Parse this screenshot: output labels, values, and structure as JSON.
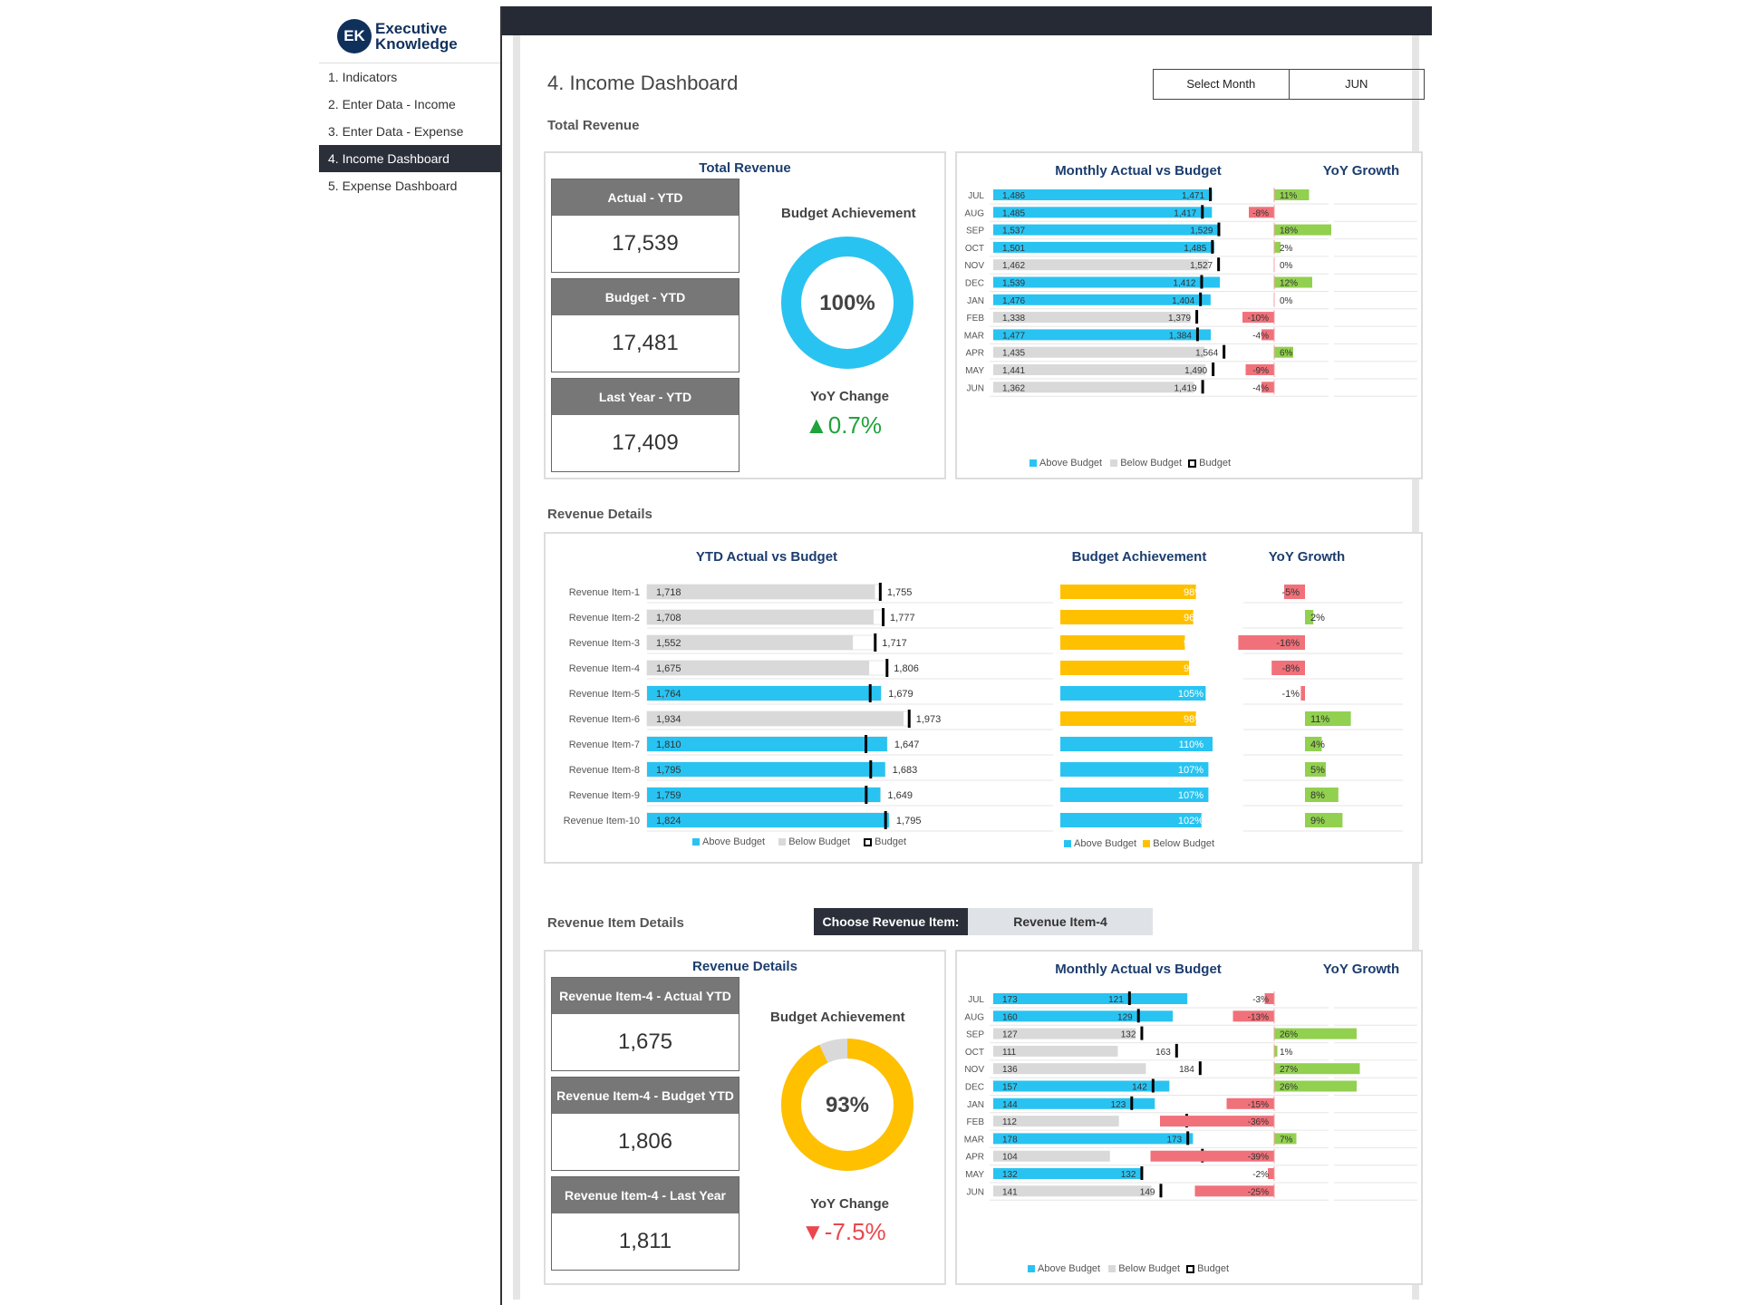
{
  "logo": {
    "mark": "EK",
    "line1": "Executive",
    "line2": "Knowledge"
  },
  "nav": [
    {
      "label": "1. Indicators"
    },
    {
      "label": "2. Enter Data - Income"
    },
    {
      "label": "3. Enter Data - Expense"
    },
    {
      "label": "4. Income Dashboard",
      "active": true
    },
    {
      "label": "5. Expense Dashboard"
    }
  ],
  "page": {
    "title": "4. Income Dashboard",
    "select_month_label": "Select Month",
    "select_month_value": "JUN",
    "sec_total_revenue": "Total Revenue",
    "sec_revenue_details": "Revenue Details",
    "sec_item_details": "Revenue Item Details",
    "choose_label": "Choose Revenue Item:",
    "choose_value": "Revenue Item-4"
  },
  "colors": {
    "above": "#29c3f2",
    "below": "#d9d9d9",
    "budget": "#000000",
    "yoy_pos": "#92d050",
    "yoy_neg": "#f0717a",
    "gold": "#ffc000",
    "green": "#1fa33a",
    "red": "#e8484e"
  },
  "total_revenue": {
    "panel_title": "Total Revenue",
    "kpis": [
      {
        "label": "Actual - YTD",
        "value": "17,539"
      },
      {
        "label": "Budget - YTD",
        "value": "17,481"
      },
      {
        "label": "Last Year - YTD",
        "value": "17,409"
      }
    ],
    "achievement_label": "Budget Achievement",
    "achievement_value": "100%",
    "achievement_pct": 100,
    "yoy_label": "YoY Change",
    "yoy_value": "0.7%",
    "yoy_dir": "up"
  },
  "monthly": {
    "title": "Monthly Actual vs Budget",
    "yoy_title": "YoY Growth",
    "legend": [
      "Above Budget",
      "Below Budget",
      "Budget"
    ]
  },
  "revenue_details": {
    "ytd_title": "YTD Actual vs Budget",
    "ach_title": "Budget Achievement",
    "yoy_title": "YoY Growth",
    "legend_left": [
      "Above Budget",
      "Below Budget",
      "Budget"
    ],
    "legend_mid": [
      "Above Budget",
      "Below Budget"
    ]
  },
  "item_details": {
    "panel_title": "Revenue Details",
    "kpis": [
      {
        "label": "Revenue Item-4 - Actual YTD",
        "value": "1,675"
      },
      {
        "label": "Revenue Item-4 - Budget YTD",
        "value": "1,806"
      },
      {
        "label": "Revenue Item-4 - Last Year YTD",
        "value": "1,811"
      }
    ],
    "achievement_label": "Budget Achievement",
    "achievement_value": "93%",
    "achievement_pct": 93,
    "yoy_label": "YoY Change",
    "yoy_value": "-7.5%",
    "yoy_dir": "down"
  },
  "chart_data": [
    {
      "type": "bar",
      "title": "Monthly Actual vs Budget",
      "categories": [
        "JUL",
        "AUG",
        "SEP",
        "OCT",
        "NOV",
        "DEC",
        "JAN",
        "FEB",
        "MAR",
        "APR",
        "MAY",
        "JUN"
      ],
      "series": [
        {
          "name": "Actual",
          "values": [
            1486,
            1485,
            1537,
            1501,
            1462,
            1539,
            1476,
            1338,
            1477,
            1435,
            1441,
            1362
          ]
        },
        {
          "name": "Budget",
          "values": [
            1471,
            1417,
            1529,
            1485,
            1527,
            1412,
            1404,
            1379,
            1384,
            1564,
            1490,
            1419
          ]
        }
      ],
      "yoy": {
        "title": "YoY Growth",
        "values": [
          11,
          -8,
          18,
          2,
          0,
          12,
          0,
          -10,
          -4,
          6,
          -9,
          -4
        ],
        "labels": [
          "11%",
          "-8%",
          "18%",
          "2%",
          "0%",
          "12%",
          "0%",
          "-10%",
          "-4%",
          "6%",
          "-9%",
          "-4%"
        ]
      }
    },
    {
      "type": "bar",
      "title": "YTD Actual vs Budget",
      "categories": [
        "Revenue Item-1",
        "Revenue Item-2",
        "Revenue Item-3",
        "Revenue Item-4",
        "Revenue Item-5",
        "Revenue Item-6",
        "Revenue Item-7",
        "Revenue Item-8",
        "Revenue Item-9",
        "Revenue Item-10"
      ],
      "series": [
        {
          "name": "Actual",
          "values": [
            1718,
            1708,
            1552,
            1675,
            1764,
            1934,
            1810,
            1795,
            1759,
            1824
          ]
        },
        {
          "name": "Budget",
          "values": [
            1755,
            1777,
            1717,
            1806,
            1679,
            1973,
            1647,
            1683,
            1649,
            1795
          ]
        }
      ],
      "achievement": {
        "title": "Budget Achievement",
        "values": [
          98,
          96,
          90,
          93,
          105,
          98,
          110,
          107,
          107,
          102
        ],
        "labels": [
          "98%",
          "96%",
          "90%",
          "93%",
          "105%",
          "98%",
          "110%",
          "107%",
          "107%",
          "102%"
        ]
      },
      "yoy": {
        "title": "YoY Growth",
        "values": [
          -5,
          2,
          -16,
          -8,
          -1,
          11,
          4,
          5,
          8,
          9
        ],
        "labels": [
          "-5%",
          "2%",
          "-16%",
          "-8%",
          "-1%",
          "11%",
          "4%",
          "5%",
          "8%",
          "9%"
        ]
      }
    },
    {
      "type": "bar",
      "title": "Monthly Actual vs Budget",
      "categories": [
        "JUL",
        "AUG",
        "SEP",
        "OCT",
        "NOV",
        "DEC",
        "JAN",
        "FEB",
        "MAR",
        "APR",
        "MAY",
        "JUN"
      ],
      "series": [
        {
          "name": "Actual",
          "values": [
            173,
            160,
            127,
            111,
            136,
            157,
            144,
            112,
            178,
            104,
            132,
            141
          ]
        },
        {
          "name": "Budget",
          "values": [
            121,
            129,
            132,
            163,
            184,
            142,
            123,
            172,
            173,
            186,
            132,
            149
          ]
        }
      ],
      "yoy": {
        "title": "YoY Growth",
        "values": [
          -3,
          -13,
          26,
          1,
          27,
          26,
          -15,
          -36,
          7,
          -39,
          -2,
          -25
        ],
        "labels": [
          "-3%",
          "-13%",
          "26%",
          "1%",
          "27%",
          "26%",
          "-15%",
          "-36%",
          "7%",
          "-39%",
          "-2%",
          "-25%"
        ]
      }
    }
  ]
}
